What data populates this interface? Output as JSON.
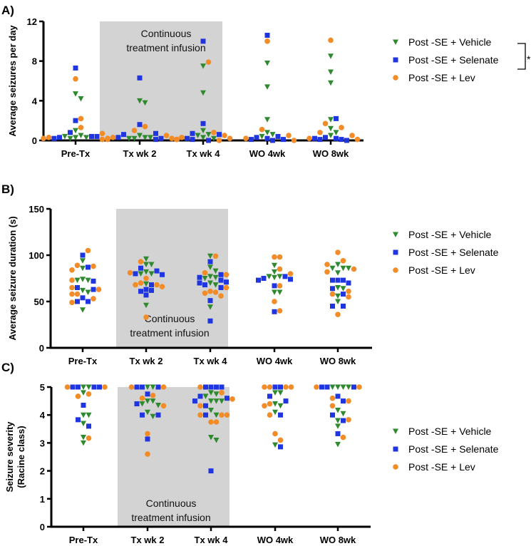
{
  "legend": {
    "vehicle": "Post -SE + Vehicle",
    "selenate": "Post -SE + Selenate",
    "lev": "Post -SE + Lev",
    "significance": "*"
  },
  "colors": {
    "vehicle": "#2f8a2f",
    "selenate": "#1f35e0",
    "lev": "#f28c28",
    "band": "#d3d3d3"
  },
  "band_text": [
    "Continuous",
    "treatment infusion"
  ],
  "chart_data": [
    {
      "type": "scatter",
      "panel": "A)",
      "ylabel": [
        "Average seizures per day"
      ],
      "ylim": [
        0,
        12
      ],
      "yticks": [
        0,
        4,
        8,
        12
      ],
      "categories": [
        "Pre-Tx",
        "Tx wk 2",
        "Tx wk 4",
        "WO 4wk",
        "WO 8wk"
      ],
      "shaded_categories": [
        "Tx wk 2",
        "Tx wk 4"
      ],
      "legend_position": "right",
      "significance_bracket": [
        "vehicle",
        "selenate"
      ],
      "series": [
        {
          "key": "vehicle",
          "name": "Post -SE + Vehicle",
          "marker": "triangle-down",
          "values": [
            [
              4.7,
              4.2,
              1.0,
              0.5,
              0.3,
              0.2,
              0.3,
              0.4
            ],
            [
              4.0,
              3.8,
              0.5,
              0.3,
              0.2,
              0.3,
              0.2
            ],
            [
              7.5,
              4.8,
              1.0,
              0.6,
              0.5,
              0.3,
              0.2
            ],
            [
              7.8,
              5.4,
              2.1,
              0.8,
              0.6,
              0.4
            ],
            [
              8.5,
              6.9,
              5.8,
              2.1,
              1.2,
              0.8,
              0.5
            ]
          ]
        },
        {
          "key": "selenate",
          "name": "Post -SE + Selenate",
          "marker": "square",
          "values": [
            [
              7.3,
              2.0,
              0.8,
              0.4,
              0.3,
              0.4,
              0.2
            ],
            [
              6.3,
              1.6,
              0.7,
              0.6,
              0.2,
              0.1,
              0.3
            ],
            [
              10.0,
              1.7,
              0.7,
              0.6,
              0.2,
              0.1,
              0.0
            ],
            [
              10.6,
              0.4,
              0.3,
              0.2,
              0.1,
              0.0,
              0.1
            ],
            [
              2.2,
              0.3,
              0.2,
              0.1,
              0.1,
              0.0,
              0.2
            ]
          ]
        },
        {
          "key": "lev",
          "name": "Post -SE + Lev",
          "marker": "circle",
          "values": [
            [
              6.2,
              2.2,
              1.3,
              0.7,
              0.3,
              0.2,
              0.1,
              0.2
            ],
            [
              1.4,
              1.0,
              0.5,
              0.3,
              0.2,
              0.1,
              0.1
            ],
            [
              7.9,
              0.8,
              0.5,
              0.3,
              0.2,
              0.1,
              0.0
            ],
            [
              10.0,
              1.1,
              0.5,
              0.2,
              0.0
            ],
            [
              10.1,
              1.7,
              1.3,
              0.8,
              0.5,
              0.2,
              0.1
            ]
          ]
        }
      ]
    },
    {
      "type": "scatter",
      "panel": "B)",
      "ylabel": [
        "Average seizure duration (s)"
      ],
      "ylim": [
        0,
        150
      ],
      "yticks": [
        0,
        50,
        100,
        150
      ],
      "categories": [
        "Pre-Tx",
        "Tx wk 2",
        "Tx wk 4",
        "WO 4wk",
        "WO 8wk"
      ],
      "shaded_categories": [
        "Tx wk 2",
        "Tx wk 4"
      ],
      "legend_position": "right",
      "series": [
        {
          "key": "vehicle",
          "name": "Post -SE + Vehicle",
          "marker": "triangle-down",
          "values": [
            [
              94,
              86,
              74,
              73,
              73,
              62,
              60,
              41
            ],
            [
              96,
              90,
              90,
              82,
              80,
              80,
              69,
              46
            ],
            [
              99,
              87,
              83,
              77,
              76,
              75,
              70,
              68,
              44
            ],
            [
              89,
              82,
              77,
              77,
              76,
              60,
              60
            ],
            [
              90,
              86,
              86,
              86,
              81,
              65,
              64,
              56,
              50
            ]
          ]
        },
        {
          "key": "selenate",
          "name": "Post -SE + Selenate",
          "marker": "square",
          "values": [
            [
              100,
              87,
              72,
              65,
              63,
              54,
              50,
              50
            ],
            [
              86,
              83,
              80,
              79,
              68,
              63,
              62,
              61,
              57
            ],
            [
              93,
              79,
              76,
              73,
              71,
              70,
              68,
              65,
              51,
              29
            ],
            [
              77,
              75,
              74,
              73,
              67,
              39
            ],
            [
              73,
              73,
              73,
              70,
              64,
              58,
              45,
              45
            ]
          ]
        },
        {
          "key": "lev",
          "name": "Post -SE + Lev",
          "marker": "circle",
          "values": [
            [
              105,
              89,
              88,
              84,
              73,
              65,
              63,
              58,
              58,
              53,
              49
            ],
            [
              93,
              81,
              75,
              70,
              68,
              68,
              66,
              33
            ],
            [
              99,
              81,
              79,
              61,
              60,
              59,
              56,
              65
            ],
            [
              98,
              98,
              85,
              80,
              67,
              50,
              40
            ],
            [
              103,
              94,
              90,
              85,
              82,
              61,
              58,
              55,
              36
            ]
          ]
        }
      ]
    },
    {
      "type": "scatter",
      "panel": "C)",
      "ylabel": [
        "Seizure severity",
        "(Racine class)"
      ],
      "ylim": [
        0,
        5
      ],
      "yticks": [
        0,
        1,
        2,
        3,
        4,
        5
      ],
      "categories": [
        "Pre-Tx",
        "Tx wk 2",
        "Tx wk 4",
        "WO 4wk",
        "WO 8wk"
      ],
      "shaded_categories": [
        "Tx wk 2",
        "Tx wk 4"
      ],
      "legend_position": "right",
      "series": [
        {
          "key": "vehicle",
          "name": "Post -SE + Vehicle",
          "marker": "triangle-down",
          "values": [
            [
              5,
              5,
              4.8,
              4,
              4,
              3.7,
              3.2,
              3.0
            ],
            [
              5,
              5,
              4.5,
              4.5,
              4.4,
              4.35,
              4.1,
              3.95
            ],
            [
              4.8,
              4.75,
              4.67,
              4.5,
              4.5,
              4.5,
              4.17,
              4.0,
              3.2,
              3.1
            ],
            [
              4.8,
              4.8,
              4.4,
              4.33,
              4.1,
              2.93
            ],
            [
              5,
              5,
              5,
              5,
              4.17,
              4.05,
              3.8,
              3.6,
              2.95
            ]
          ]
        },
        {
          "key": "selenate",
          "name": "Post -SE + Selenate",
          "marker": "square",
          "values": [
            [
              5,
              5,
              5,
              5,
              4.35,
              3.83,
              3.6
            ],
            [
              5,
              5,
              5,
              4.75,
              4.4,
              4,
              4,
              3.14
            ],
            [
              5,
              5,
              5,
              5,
              4.67,
              4.6,
              4.5,
              4.33,
              4.0,
              2.0
            ],
            [
              5,
              5,
              4.67,
              4.5,
              4,
              2.86
            ],
            [
              5,
              5,
              5,
              4.67,
              4.5,
              4.0,
              3.8,
              3.33
            ]
          ]
        },
        {
          "key": "lev",
          "name": "Post -SE + Lev",
          "marker": "circle",
          "values": [
            [
              5,
              5,
              4.75,
              4.67,
              3.17
            ],
            [
              5,
              5,
              4.7,
              4.6,
              4.33,
              3.33,
              2.6
            ],
            [
              5,
              4.8,
              4.57,
              4.33,
              4,
              4,
              4,
              3.75,
              3.75
            ],
            [
              5,
              5,
              5,
              5,
              4.4,
              4.33,
              4,
              3.33,
              3.1
            ],
            [
              5,
              5,
              4.6,
              4.5,
              4.33,
              3.83,
              3.2
            ]
          ]
        }
      ]
    }
  ]
}
